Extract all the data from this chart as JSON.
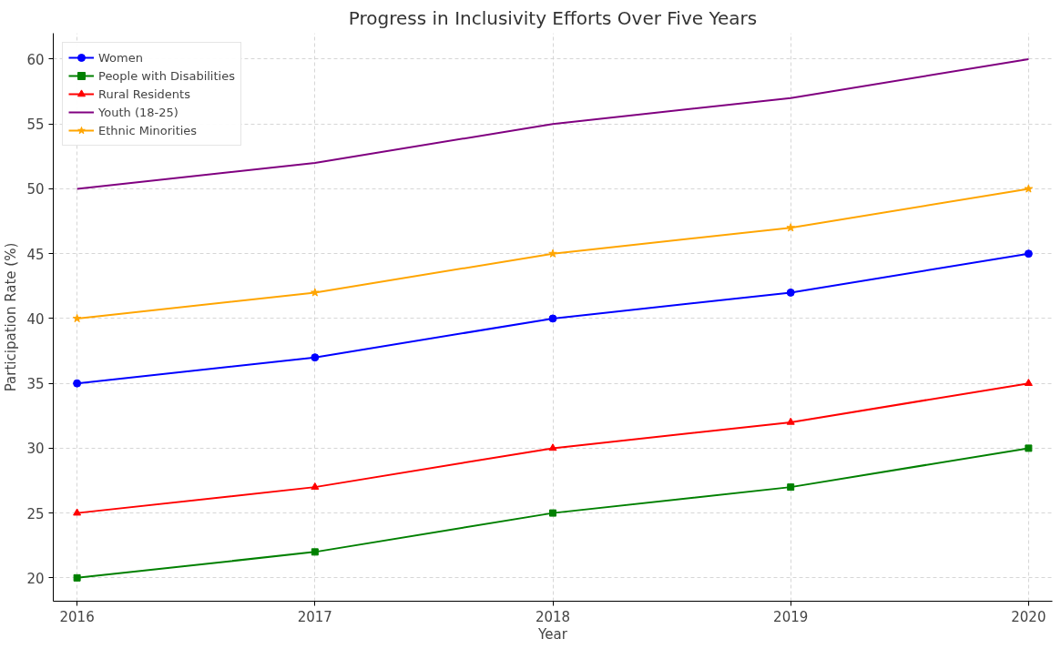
{
  "chart_data": {
    "type": "line",
    "title": "Progress in Inclusivity Efforts Over Five Years",
    "xlabel": "Year",
    "ylabel": "Participation Rate (%)",
    "x": [
      2016,
      2017,
      2018,
      2019,
      2020
    ],
    "series": [
      {
        "name": "Women",
        "color": "#0000ff",
        "marker": "circle",
        "values": [
          35,
          37,
          40,
          42,
          45
        ]
      },
      {
        "name": "People with Disabilities",
        "color": "#008000",
        "marker": "square",
        "values": [
          20,
          22,
          25,
          27,
          30
        ]
      },
      {
        "name": "Rural Residents",
        "color": "#ff0000",
        "marker": "triangle",
        "values": [
          25,
          27,
          30,
          32,
          35
        ]
      },
      {
        "name": "Youth (18-25)",
        "color": "#800080",
        "marker": "none",
        "values": [
          50,
          52,
          55,
          57,
          60
        ]
      },
      {
        "name": "Ethnic Minorities",
        "color": "#ffa500",
        "marker": "star",
        "values": [
          40,
          42,
          45,
          47,
          50
        ]
      }
    ],
    "xlim": [
      2015.9,
      2020.1
    ],
    "ylim": [
      18.2,
      62
    ],
    "xticks": [
      2016,
      2017,
      2018,
      2019,
      2020
    ],
    "yticks": [
      20,
      25,
      30,
      35,
      40,
      45,
      50,
      55,
      60
    ],
    "grid": true,
    "legend": "top left",
    "line_style": "solid"
  }
}
